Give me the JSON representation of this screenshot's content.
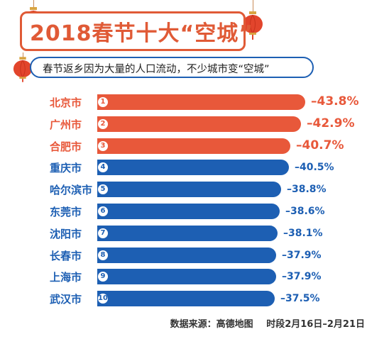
{
  "title": "2018春节十大“空城”",
  "subtitle": "春节返乡因为大量的人口流动，不少城市变“空城”",
  "footer": {
    "source": "数据来源：高德地图",
    "period": "时段2月16日–2月21日"
  },
  "colors": {
    "highlight": "#e8583a",
    "normal": "#1d5fb3",
    "title": "#e05a36"
  },
  "lantern_icon": "lantern-icon",
  "chart_data": {
    "type": "bar",
    "orientation": "horizontal",
    "title": "2018春节十大“空城”",
    "categories": [
      "北京市",
      "广州市",
      "合肥市",
      "重庆市",
      "哈尔滨市",
      "东莞市",
      "沈阳市",
      "长春市",
      "上海市",
      "武汉市"
    ],
    "ranks": [
      "1",
      "2",
      "3",
      "4",
      "5",
      "6",
      "7",
      "8",
      "9",
      "10"
    ],
    "values": [
      -43.8,
      -42.9,
      -40.7,
      -40.5,
      -38.8,
      -38.6,
      -38.1,
      -37.9,
      -37.9,
      -37.5
    ],
    "value_labels": [
      "–43.8%",
      "–42.9%",
      "–40.7%",
      "–40.5%",
      "–38.8%",
      "–38.6%",
      "–38.1%",
      "–37.9%",
      "–37.9%",
      "–37.5%"
    ],
    "highlight_top": 3,
    "grid": false
  }
}
